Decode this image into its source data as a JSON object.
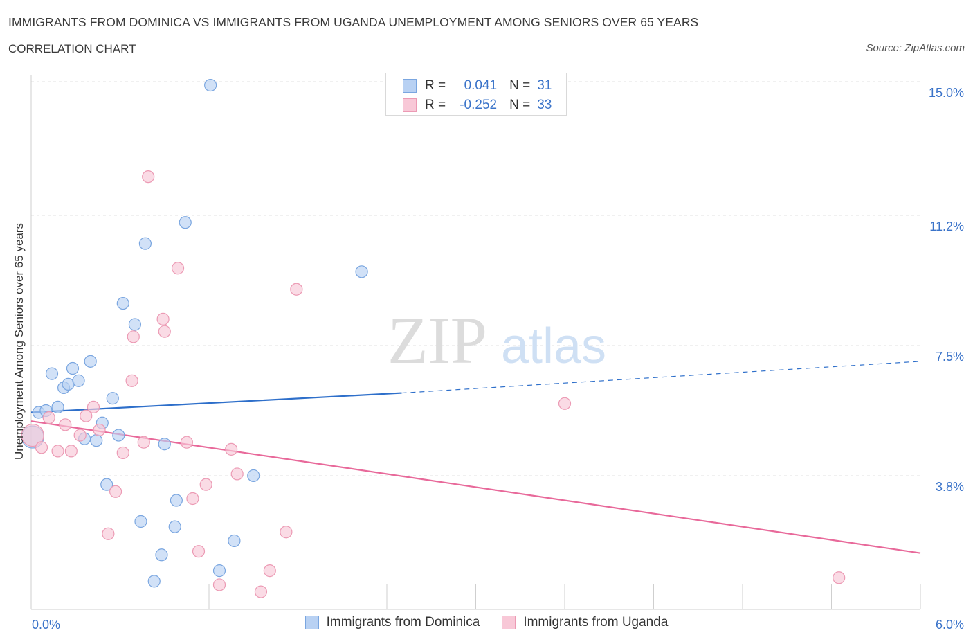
{
  "header": {
    "title": "IMMIGRANTS FROM DOMINICA VS IMMIGRANTS FROM UGANDA UNEMPLOYMENT AMONG SENIORS OVER 65 YEARS",
    "subtitle": "CORRELATION CHART",
    "source": "Source: ZipAtlas.com"
  },
  "legend": {
    "rows": [
      {
        "r_label": "R =",
        "r_value": "0.041",
        "n_label": "N =",
        "n_value": "31"
      },
      {
        "r_label": "R =",
        "r_value": "-0.252",
        "n_label": "N =",
        "n_value": "33"
      }
    ]
  },
  "watermark": {
    "zip": "ZIP",
    "atlas": "atlas"
  },
  "colors": {
    "dominica_fill": "#b8d1f3",
    "dominica_stroke": "#7aa6e0",
    "dominica_line": "#2e6fca",
    "uganda_fill": "#f8c8d7",
    "uganda_stroke": "#ec9ab4",
    "uganda_line": "#e8699a",
    "tick_label": "#3a73c9",
    "grid": "#e0e0e0"
  },
  "chart_data": {
    "type": "scatter",
    "title": "IMMIGRANTS FROM DOMINICA VS IMMIGRANTS FROM UGANDA UNEMPLOYMENT AMONG SENIORS OVER 65 YEARS",
    "xlabel": "",
    "ylabel": "Unemployment Among Seniors over 65 years",
    "xlim": [
      0,
      6.0
    ],
    "ylim": [
      0,
      15.0
    ],
    "x_tick_labels": [
      "0.0%",
      "6.0%"
    ],
    "y_ticks": [
      3.8,
      7.5,
      11.2,
      15.0
    ],
    "y_tick_labels": [
      "3.8%",
      "7.5%",
      "11.2%",
      "15.0%"
    ],
    "grid": true,
    "legend_position": "bottom",
    "series": [
      {
        "name": "Immigrants from Dominica",
        "R": 0.041,
        "N": 31,
        "trend": {
          "x0": 0.0,
          "y0": 5.6,
          "x1": 2.5,
          "y1": 6.15,
          "dash_to_x": 6.0,
          "dash_to_y": 7.05
        },
        "points": [
          {
            "x": 0.01,
            "y": 4.9,
            "big": true
          },
          {
            "x": 0.05,
            "y": 5.6
          },
          {
            "x": 0.1,
            "y": 5.65
          },
          {
            "x": 0.18,
            "y": 5.75
          },
          {
            "x": 0.14,
            "y": 6.7
          },
          {
            "x": 0.22,
            "y": 6.3
          },
          {
            "x": 0.25,
            "y": 6.4
          },
          {
            "x": 0.28,
            "y": 6.85
          },
          {
            "x": 0.32,
            "y": 6.5
          },
          {
            "x": 0.4,
            "y": 7.05
          },
          {
            "x": 0.55,
            "y": 6.0
          },
          {
            "x": 0.48,
            "y": 5.3
          },
          {
            "x": 0.59,
            "y": 4.95
          },
          {
            "x": 0.36,
            "y": 4.85
          },
          {
            "x": 0.44,
            "y": 4.8
          },
          {
            "x": 0.51,
            "y": 3.55
          },
          {
            "x": 0.9,
            "y": 4.7
          },
          {
            "x": 0.98,
            "y": 3.1
          },
          {
            "x": 0.74,
            "y": 2.5
          },
          {
            "x": 0.97,
            "y": 2.35
          },
          {
            "x": 0.88,
            "y": 1.55
          },
          {
            "x": 0.83,
            "y": 0.8
          },
          {
            "x": 1.27,
            "y": 1.1
          },
          {
            "x": 1.37,
            "y": 1.95
          },
          {
            "x": 1.5,
            "y": 3.8
          },
          {
            "x": 0.62,
            "y": 8.7
          },
          {
            "x": 0.7,
            "y": 8.1
          },
          {
            "x": 0.77,
            "y": 10.4
          },
          {
            "x": 1.04,
            "y": 11.0
          },
          {
            "x": 1.21,
            "y": 14.9
          },
          {
            "x": 2.23,
            "y": 9.6
          }
        ]
      },
      {
        "name": "Immigrants from Uganda",
        "R": -0.252,
        "N": 33,
        "trend": {
          "x0": 0.0,
          "y0": 5.35,
          "x1": 6.0,
          "y1": 1.6
        },
        "points": [
          {
            "x": 0.01,
            "y": 4.95,
            "big": true
          },
          {
            "x": 0.07,
            "y": 4.6
          },
          {
            "x": 0.12,
            "y": 5.45
          },
          {
            "x": 0.18,
            "y": 4.5
          },
          {
            "x": 0.23,
            "y": 5.25
          },
          {
            "x": 0.27,
            "y": 4.5
          },
          {
            "x": 0.33,
            "y": 4.95
          },
          {
            "x": 0.37,
            "y": 5.5
          },
          {
            "x": 0.42,
            "y": 5.75
          },
          {
            "x": 0.46,
            "y": 5.1
          },
          {
            "x": 0.62,
            "y": 4.45
          },
          {
            "x": 0.57,
            "y": 3.35
          },
          {
            "x": 0.52,
            "y": 2.15
          },
          {
            "x": 0.76,
            "y": 4.75
          },
          {
            "x": 0.68,
            "y": 6.5
          },
          {
            "x": 0.69,
            "y": 7.75
          },
          {
            "x": 0.89,
            "y": 8.25
          },
          {
            "x": 0.9,
            "y": 7.9
          },
          {
            "x": 0.99,
            "y": 9.7
          },
          {
            "x": 0.79,
            "y": 12.3
          },
          {
            "x": 1.05,
            "y": 4.75
          },
          {
            "x": 1.09,
            "y": 3.15
          },
          {
            "x": 1.13,
            "y": 1.65
          },
          {
            "x": 1.18,
            "y": 3.55
          },
          {
            "x": 1.27,
            "y": 0.7
          },
          {
            "x": 1.35,
            "y": 4.55
          },
          {
            "x": 1.39,
            "y": 3.85
          },
          {
            "x": 1.55,
            "y": 0.5
          },
          {
            "x": 1.61,
            "y": 1.1
          },
          {
            "x": 1.72,
            "y": 2.2
          },
          {
            "x": 1.79,
            "y": 9.1
          },
          {
            "x": 3.6,
            "y": 5.85
          },
          {
            "x": 5.45,
            "y": 0.9
          }
        ]
      }
    ]
  },
  "bottom_legend": {
    "items": [
      "Immigrants from Dominica",
      "Immigrants from Uganda"
    ]
  }
}
